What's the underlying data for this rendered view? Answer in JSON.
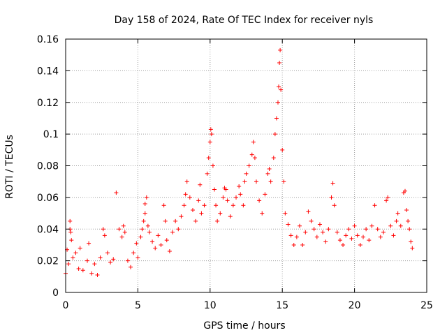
{
  "chart_data": {
    "type": "scatter",
    "title": "Day 158 of 2024, Rate Of TEC Index for receiver nyls",
    "xlabel": "GPS time / hours",
    "ylabel": "ROTI / TECUs",
    "xlim": [
      0,
      25
    ],
    "ylim": [
      0,
      0.16
    ],
    "xticks": [
      0,
      5,
      10,
      15,
      20,
      25
    ],
    "xtick_labels": [
      "0",
      "5",
      "10",
      "15",
      "20",
      "25"
    ],
    "yticks": [
      0,
      0.02,
      0.04,
      0.06,
      0.08,
      0.1,
      0.12,
      0.14,
      0.16
    ],
    "ytick_labels": [
      "0",
      "0.02",
      "0.04",
      "0.06",
      "0.08",
      "0.1",
      "0.12",
      "0.14",
      "0.16"
    ],
    "grid": true,
    "marker": "+",
    "color": "#ff0000",
    "series": [
      {
        "name": "ROTI",
        "points": [
          [
            0.0,
            0.012
          ],
          [
            0.1,
            0.027
          ],
          [
            0.2,
            0.018
          ],
          [
            0.3,
            0.04
          ],
          [
            0.3,
            0.045
          ],
          [
            0.35,
            0.038
          ],
          [
            0.4,
            0.033
          ],
          [
            0.5,
            0.022
          ],
          [
            0.7,
            0.025
          ],
          [
            0.9,
            0.015
          ],
          [
            1.0,
            0.028
          ],
          [
            1.2,
            0.014
          ],
          [
            1.5,
            0.02
          ],
          [
            1.6,
            0.031
          ],
          [
            1.8,
            0.012
          ],
          [
            2.0,
            0.018
          ],
          [
            2.2,
            0.011
          ],
          [
            2.4,
            0.022
          ],
          [
            2.6,
            0.04
          ],
          [
            2.7,
            0.036
          ],
          [
            2.9,
            0.025
          ],
          [
            3.1,
            0.019
          ],
          [
            3.3,
            0.021
          ],
          [
            3.5,
            0.063
          ],
          [
            3.7,
            0.04
          ],
          [
            3.9,
            0.035
          ],
          [
            4.0,
            0.042
          ],
          [
            4.1,
            0.038
          ],
          [
            4.3,
            0.02
          ],
          [
            4.5,
            0.016
          ],
          [
            4.7,
            0.025
          ],
          [
            4.9,
            0.031
          ],
          [
            5.0,
            0.022
          ],
          [
            5.2,
            0.035
          ],
          [
            5.3,
            0.04
          ],
          [
            5.4,
            0.045
          ],
          [
            5.5,
            0.05
          ],
          [
            5.5,
            0.056
          ],
          [
            5.6,
            0.06
          ],
          [
            5.7,
            0.042
          ],
          [
            5.8,
            0.038
          ],
          [
            6.0,
            0.032
          ],
          [
            6.2,
            0.028
          ],
          [
            6.4,
            0.036
          ],
          [
            6.6,
            0.03
          ],
          [
            6.8,
            0.055
          ],
          [
            6.9,
            0.045
          ],
          [
            7.0,
            0.033
          ],
          [
            7.2,
            0.026
          ],
          [
            7.4,
            0.038
          ],
          [
            7.6,
            0.045
          ],
          [
            7.8,
            0.04
          ],
          [
            8.0,
            0.048
          ],
          [
            8.2,
            0.055
          ],
          [
            8.3,
            0.062
          ],
          [
            8.4,
            0.07
          ],
          [
            8.6,
            0.06
          ],
          [
            8.8,
            0.052
          ],
          [
            9.0,
            0.045
          ],
          [
            9.2,
            0.058
          ],
          [
            9.3,
            0.068
          ],
          [
            9.4,
            0.05
          ],
          [
            9.6,
            0.055
          ],
          [
            9.8,
            0.075
          ],
          [
            9.9,
            0.085
          ],
          [
            10.0,
            0.095
          ],
          [
            10.05,
            0.103
          ],
          [
            10.1,
            0.1
          ],
          [
            10.2,
            0.08
          ],
          [
            10.3,
            0.065
          ],
          [
            10.4,
            0.055
          ],
          [
            10.5,
            0.045
          ],
          [
            10.7,
            0.05
          ],
          [
            10.9,
            0.06
          ],
          [
            11.0,
            0.066
          ],
          [
            11.1,
            0.065
          ],
          [
            11.2,
            0.058
          ],
          [
            11.4,
            0.048
          ],
          [
            11.6,
            0.055
          ],
          [
            11.8,
            0.06
          ],
          [
            12.0,
            0.067
          ],
          [
            12.1,
            0.062
          ],
          [
            12.3,
            0.055
          ],
          [
            12.4,
            0.07
          ],
          [
            12.5,
            0.075
          ],
          [
            12.7,
            0.08
          ],
          [
            12.9,
            0.087
          ],
          [
            13.0,
            0.095
          ],
          [
            13.1,
            0.085
          ],
          [
            13.2,
            0.07
          ],
          [
            13.4,
            0.058
          ],
          [
            13.6,
            0.05
          ],
          [
            13.8,
            0.062
          ],
          [
            14.0,
            0.075
          ],
          [
            14.1,
            0.078
          ],
          [
            14.2,
            0.07
          ],
          [
            14.4,
            0.085
          ],
          [
            14.5,
            0.1
          ],
          [
            14.6,
            0.11
          ],
          [
            14.7,
            0.12
          ],
          [
            14.75,
            0.13
          ],
          [
            14.8,
            0.145
          ],
          [
            14.85,
            0.153
          ],
          [
            14.9,
            0.128
          ],
          [
            15.0,
            0.09
          ],
          [
            15.1,
            0.07
          ],
          [
            15.2,
            0.05
          ],
          [
            15.4,
            0.043
          ],
          [
            15.6,
            0.036
          ],
          [
            15.8,
            0.03
          ],
          [
            16.0,
            0.035
          ],
          [
            16.2,
            0.042
          ],
          [
            16.4,
            0.03
          ],
          [
            16.6,
            0.038
          ],
          [
            16.8,
            0.051
          ],
          [
            17.0,
            0.045
          ],
          [
            17.2,
            0.04
          ],
          [
            17.4,
            0.035
          ],
          [
            17.6,
            0.043
          ],
          [
            17.8,
            0.038
          ],
          [
            18.0,
            0.032
          ],
          [
            18.2,
            0.04
          ],
          [
            18.4,
            0.06
          ],
          [
            18.5,
            0.069
          ],
          [
            18.6,
            0.055
          ],
          [
            18.8,
            0.038
          ],
          [
            19.0,
            0.033
          ],
          [
            19.2,
            0.03
          ],
          [
            19.4,
            0.036
          ],
          [
            19.6,
            0.04
          ],
          [
            19.8,
            0.034
          ],
          [
            20.0,
            0.042
          ],
          [
            20.2,
            0.036
          ],
          [
            20.4,
            0.03
          ],
          [
            20.6,
            0.035
          ],
          [
            20.8,
            0.04
          ],
          [
            21.0,
            0.033
          ],
          [
            21.2,
            0.042
          ],
          [
            21.4,
            0.055
          ],
          [
            21.6,
            0.04
          ],
          [
            21.8,
            0.035
          ],
          [
            22.0,
            0.038
          ],
          [
            22.2,
            0.058
          ],
          [
            22.3,
            0.06
          ],
          [
            22.5,
            0.042
          ],
          [
            22.7,
            0.036
          ],
          [
            22.9,
            0.045
          ],
          [
            23.0,
            0.05
          ],
          [
            23.2,
            0.042
          ],
          [
            23.4,
            0.063
          ],
          [
            23.5,
            0.064
          ],
          [
            23.6,
            0.052
          ],
          [
            23.7,
            0.045
          ],
          [
            23.8,
            0.04
          ],
          [
            23.9,
            0.032
          ],
          [
            24.0,
            0.028
          ]
        ]
      }
    ]
  }
}
